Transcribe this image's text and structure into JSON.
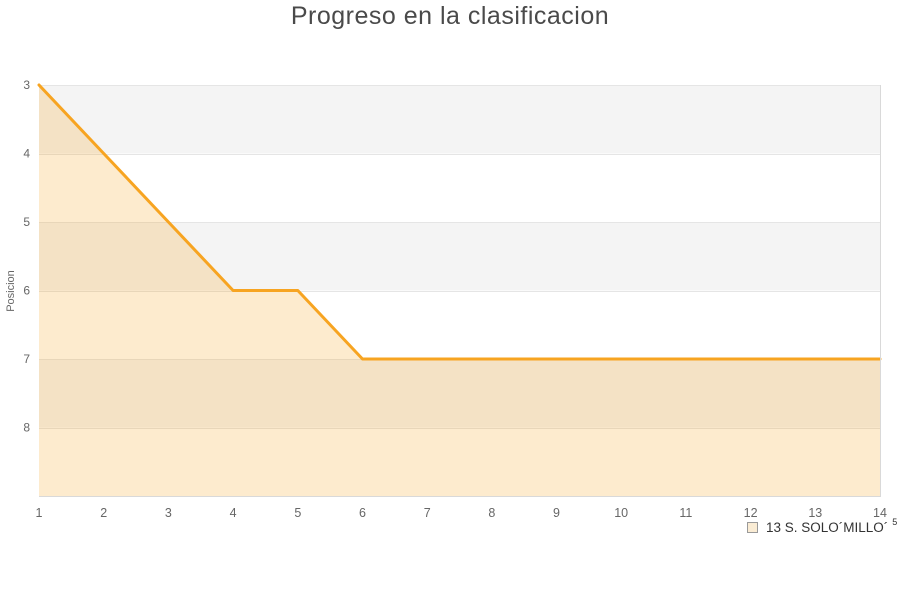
{
  "chart_data": {
    "type": "line",
    "title": "Progreso en la clasificacion",
    "ylabel": "Posicion",
    "xlabel": "",
    "x": [
      1,
      2,
      3,
      4,
      5,
      6,
      7,
      8,
      9,
      10,
      11,
      12,
      13,
      14
    ],
    "series": [
      {
        "name": "13 S. SOLO´MILLO´",
        "name_superscript": "5",
        "values": [
          3,
          4,
          5,
          6,
          6,
          7,
          7,
          7,
          7,
          7,
          7,
          7,
          7,
          7
        ]
      }
    ],
    "y_axis": {
      "inverted_ranking": true,
      "ylim": [
        3,
        9
      ],
      "ticks": [
        3,
        4,
        5,
        6,
        7,
        8
      ]
    },
    "x_axis": {
      "ticks": [
        1,
        2,
        3,
        4,
        5,
        6,
        7,
        8,
        9,
        10,
        11,
        12,
        13,
        14
      ]
    },
    "legend": {
      "position": "bottom-right"
    },
    "grid": "alternating horizontal bands, no vertical gridlines",
    "colors": {
      "line": "#F7A421",
      "area": "rgba(247,164,33,0.22)",
      "band_shaded": "#F4F4F4",
      "band_plain": "#FFFFFF",
      "gridline": "#E5E5E5",
      "plot_border": "#D9D9D9",
      "title_text": "#4A4A4A",
      "tick_text": "#666666",
      "legend_text": "#333333",
      "legend_swatch_fill": "#FAECD4",
      "legend_swatch_border": "#9A9A9A"
    }
  }
}
